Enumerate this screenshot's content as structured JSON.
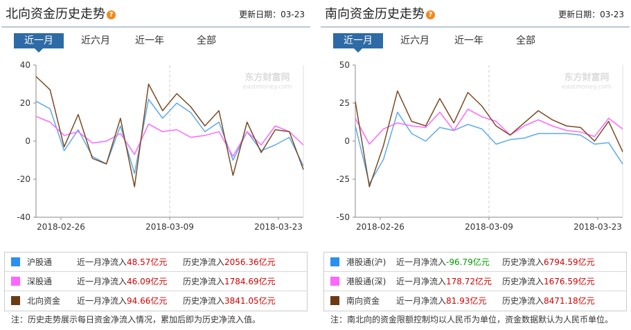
{
  "left": {
    "title": "北向资金历史走势",
    "update_label": "更新日期：",
    "update_date": "03-23",
    "tabs": [
      {
        "label": "近一月"
      },
      {
        "label": "近六月"
      },
      {
        "label": "近一年"
      },
      {
        "label": "全部"
      }
    ],
    "watermark": {
      "cn": "东方财富网",
      "en": "eastmoney.com"
    },
    "legend": [
      {
        "name": "沪股通",
        "month_label": "近一月净流入",
        "month_value": "48.57亿元",
        "hist_label": "历史净流入",
        "hist_value": "2056.36亿元",
        "color": "#2b8ff0"
      },
      {
        "name": "深股通",
        "month_label": "近一月净流入",
        "month_value": "46.09亿元",
        "hist_label": "历史净流入",
        "hist_value": "1784.69亿元",
        "color": "#ff66ff"
      },
      {
        "name": "北向资金",
        "month_label": "近一月净流入",
        "month_value": "94.66亿元",
        "hist_label": "历史净流入",
        "hist_value": "3841.05亿元",
        "color": "#6b3a14"
      }
    ],
    "note": "注：历史走势展示每日资金净流入情况，累加后即为历史净流入值。"
  },
  "right": {
    "title": "南向资金历史走势",
    "update_label": "更新日期：",
    "update_date": "03-23",
    "tabs": [
      {
        "label": "近一月"
      },
      {
        "label": "近六月"
      },
      {
        "label": "近一年"
      },
      {
        "label": "全部"
      }
    ],
    "watermark": {
      "cn": "东方财富网",
      "en": "eastmoney.com"
    },
    "legend": [
      {
        "name": "港股通(沪)",
        "month_label": "近一月净流入",
        "month_value": "-96.79亿元",
        "hist_label": "历史净流入",
        "hist_value": "6794.59亿元",
        "color": "#2b8ff0"
      },
      {
        "name": "港股通(深)",
        "month_label": "近一月净流入",
        "month_value": "178.72亿元",
        "hist_label": "历史净流入",
        "hist_value": "1676.59亿元",
        "color": "#ff66ff"
      },
      {
        "name": "南向资金",
        "month_label": "近一月净流入",
        "month_value": "81.93亿元",
        "hist_label": "历史净流入",
        "hist_value": "8471.18亿元",
        "color": "#6b3a14"
      }
    ],
    "note": "注：南北向的资金限额控制均以人民币为单位，资金数据默认为人民币单位。"
  },
  "chart_data": [
    {
      "type": "line",
      "title": "北向资金历史走势",
      "x_ticks": [
        "2018-02-26",
        "2018-03-09",
        "2018-03-23"
      ],
      "ylim": [
        -40,
        40
      ],
      "y_ticks": [
        40,
        20,
        0,
        -20,
        -40
      ],
      "series": [
        {
          "name": "沪股通",
          "color": "#5aaaf0",
          "values": [
            21,
            17,
            -5,
            6,
            -8,
            -12,
            8,
            -17,
            22,
            12,
            20,
            15,
            5,
            10,
            -10,
            5,
            -5,
            -2,
            2,
            -13
          ]
        },
        {
          "name": "深股通",
          "color": "#ff66ff",
          "values": [
            13,
            10,
            3,
            5,
            -1,
            0,
            4,
            -7,
            9,
            5,
            6,
            2,
            3,
            5,
            -8,
            5,
            -2,
            8,
            5,
            -2
          ]
        },
        {
          "name": "北向资金",
          "color": "#7a4a22",
          "values": [
            34,
            27,
            -3,
            14,
            -9,
            -12,
            12,
            -24,
            30,
            16,
            25,
            18,
            8,
            16,
            -18,
            10,
            -6,
            6,
            5,
            -15
          ]
        }
      ]
    },
    {
      "type": "line",
      "title": "南向资金历史走势",
      "x_ticks": [
        "2018-02-26",
        "2018-03-09",
        "2018-03-23"
      ],
      "ylim": [
        -50,
        50
      ],
      "y_ticks": [
        50,
        25,
        0,
        -25,
        -50
      ],
      "series": [
        {
          "name": "港股通(沪)",
          "color": "#5aaaf0",
          "values": [
            10,
            -28,
            -12,
            19,
            5,
            0,
            9,
            7,
            11,
            8,
            -2,
            1,
            2,
            5,
            5,
            5,
            4,
            -2,
            -1,
            -15
          ]
        },
        {
          "name": "港股通(深)",
          "color": "#ff66ff",
          "values": [
            15,
            -2,
            8,
            12,
            10,
            9,
            19,
            7,
            21,
            16,
            13,
            4,
            10,
            14,
            10,
            7,
            6,
            3,
            15,
            8
          ]
        },
        {
          "name": "南向资金",
          "color": "#7a4a22",
          "values": [
            26,
            -30,
            -3,
            33,
            13,
            10,
            28,
            12,
            32,
            23,
            10,
            4,
            12,
            20,
            14,
            10,
            9,
            0,
            13,
            -7
          ]
        }
      ]
    }
  ]
}
